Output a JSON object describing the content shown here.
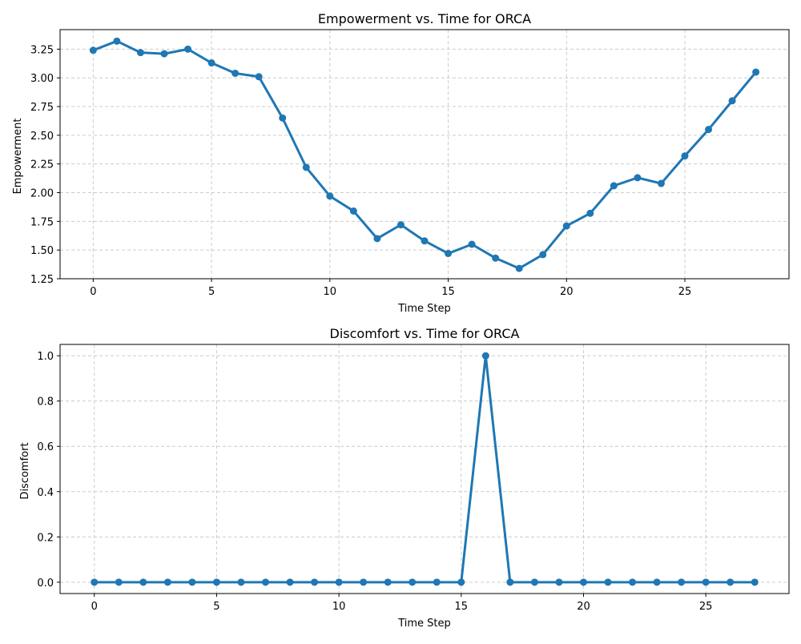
{
  "chart_data": [
    {
      "type": "line",
      "title": "Empowerment vs. Time for ORCA",
      "xlabel": "Time Step",
      "ylabel": "Empowerment",
      "xlim": [
        -1.4,
        29.4
      ],
      "ylim": [
        1.25,
        3.42
      ],
      "xticks": [
        0,
        5,
        10,
        15,
        20,
        25
      ],
      "xtick_labels": [
        "0",
        "5",
        "10",
        "15",
        "20",
        "25"
      ],
      "yticks": [
        1.25,
        1.5,
        1.75,
        2.0,
        2.25,
        2.5,
        2.75,
        3.0,
        3.25
      ],
      "ytick_labels": [
        "1.25",
        "1.50",
        "1.75",
        "2.00",
        "2.25",
        "2.50",
        "2.75",
        "3.00",
        "3.25"
      ],
      "grid": true,
      "series": [
        {
          "color": "#1f77b4",
          "marker": "circle",
          "x": [
            0,
            1,
            2,
            3,
            4,
            5,
            6,
            7,
            8,
            9,
            10,
            11,
            12,
            13,
            14,
            15,
            16,
            17,
            18,
            19,
            20,
            21,
            22,
            23,
            24,
            25,
            26,
            27,
            28
          ],
          "values": [
            3.24,
            3.32,
            3.22,
            3.21,
            3.25,
            3.13,
            3.04,
            3.01,
            2.65,
            2.22,
            1.97,
            1.84,
            1.6,
            1.72,
            1.58,
            1.47,
            1.55,
            1.43,
            1.34,
            1.46,
            1.71,
            1.82,
            2.06,
            2.13,
            2.08,
            2.32,
            2.55,
            2.8,
            3.05
          ]
        }
      ]
    },
    {
      "type": "line",
      "title": "Discomfort vs. Time for ORCA",
      "xlabel": "Time Step",
      "ylabel": "Discomfort",
      "xlim": [
        -1.4,
        28.4
      ],
      "ylim": [
        -0.05,
        1.05
      ],
      "xticks": [
        0,
        5,
        10,
        15,
        20,
        25
      ],
      "xtick_labels": [
        "0",
        "5",
        "10",
        "15",
        "20",
        "25"
      ],
      "yticks": [
        0.0,
        0.2,
        0.4,
        0.6,
        0.8,
        1.0
      ],
      "ytick_labels": [
        "0.0",
        "0.2",
        "0.4",
        "0.6",
        "0.8",
        "1.0"
      ],
      "grid": true,
      "series": [
        {
          "color": "#1f77b4",
          "marker": "circle",
          "x": [
            0,
            1,
            2,
            3,
            4,
            5,
            6,
            7,
            8,
            9,
            10,
            11,
            12,
            13,
            14,
            15,
            16,
            17,
            18,
            19,
            20,
            21,
            22,
            23,
            24,
            25,
            26,
            27
          ],
          "values": [
            0,
            0,
            0,
            0,
            0,
            0,
            0,
            0,
            0,
            0,
            0,
            0,
            0,
            0,
            0,
            0,
            1,
            0,
            0,
            0,
            0,
            0,
            0,
            0,
            0,
            0,
            0,
            0
          ]
        }
      ]
    }
  ]
}
